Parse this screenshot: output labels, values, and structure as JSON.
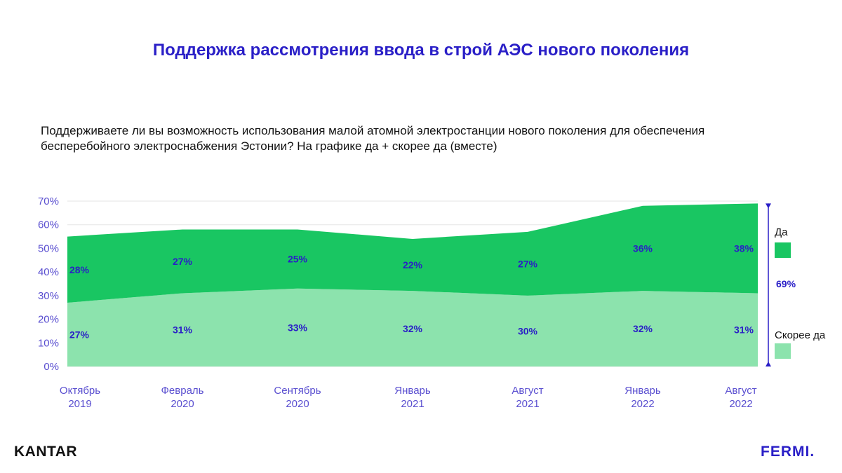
{
  "header": {
    "title": "Поддержка рассмотрения ввода в строй АЭС нового поколения",
    "question_line1": "Поддерживаете ли вы возможность использования малой атомной электростанции нового поколения для обеспечения",
    "question_line2": "бесперебойного электроснабжения Эстонии? На графике да + скорее да (вместе)"
  },
  "branding": {
    "left_logo": "KANTAR",
    "right_logo": "FERMI."
  },
  "chart_data": {
    "type": "area",
    "stacked": true,
    "categories": [
      [
        "Октябрь",
        "2019"
      ],
      [
        "Февраль",
        "2020"
      ],
      [
        "Сентябрь",
        "2020"
      ],
      [
        "Январь",
        "2021"
      ],
      [
        "Август",
        "2021"
      ],
      [
        "Январь",
        "2022"
      ],
      [
        "Август",
        "2022"
      ]
    ],
    "series": [
      {
        "name": "Скорее да",
        "color": "#8ce3ad",
        "values": [
          27,
          31,
          33,
          32,
          30,
          32,
          31
        ]
      },
      {
        "name": "Да",
        "color": "#19c662",
        "values": [
          28,
          27,
          25,
          22,
          27,
          36,
          38
        ]
      }
    ],
    "value_suffix": "%",
    "ylim": [
      0,
      70
    ],
    "yticks": [
      "0%",
      "10%",
      "20%",
      "30%",
      "40%",
      "50%",
      "60%",
      "70%"
    ],
    "grid": true,
    "legend_position": "right",
    "total_bracket_label": "69%",
    "label_color": "#2a1fc7",
    "axis_color": "#5a4fd0"
  }
}
